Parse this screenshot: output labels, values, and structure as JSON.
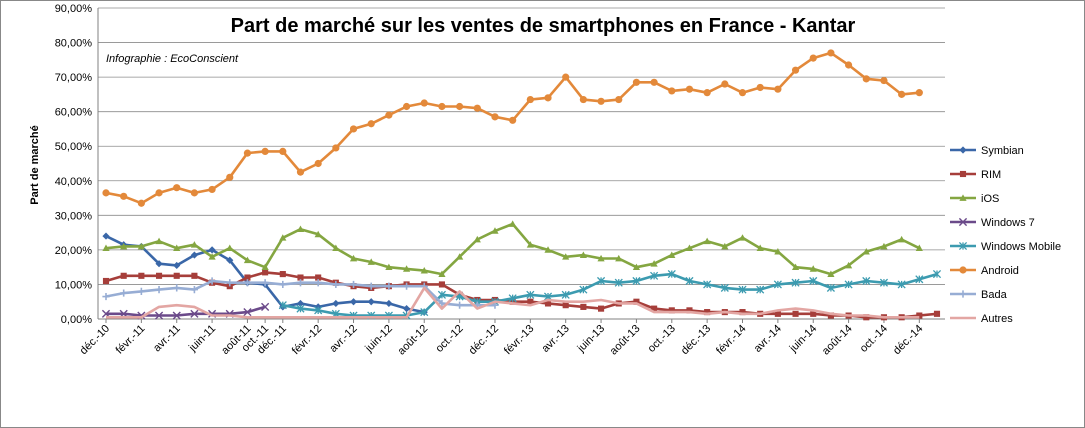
{
  "chart_data": {
    "type": "line",
    "title": "Part de marché sur les ventes de smartphones en France - Kantar",
    "subtitle": "Infographie : EcoConscient",
    "ylabel": "Part de marché",
    "xlabel": "",
    "ylim": [
      0,
      90
    ],
    "ytick_labels": [
      "0,00%",
      "10,00%",
      "20,00%",
      "30,00%",
      "40,00%",
      "50,00%",
      "60,00%",
      "70,00%",
      "80,00%",
      "90,00%"
    ],
    "grid": "horizontal",
    "legend_position": "right",
    "x": [
      "déc.-10",
      "janv.-11",
      "févr.-11",
      "mars-11",
      "avr.-11",
      "mai-11",
      "juin-11",
      "juil.-11",
      "août-11",
      "oct.-11",
      "déc.-11",
      "janv.-12",
      "févr.-12",
      "mars-12",
      "avr.-12",
      "mai-12",
      "juin-12",
      "juil.-12",
      "août-12",
      "sept.-12",
      "oct.-12",
      "nov.-12",
      "déc.-12",
      "janv.-13",
      "févr.-13",
      "mars-13",
      "avr.-13",
      "mai-13",
      "juin-13",
      "juil.-13",
      "août-13",
      "sept.-13",
      "oct.-13",
      "nov.-13",
      "déc.-13",
      "janv.-14",
      "févr.-14",
      "mars-14",
      "avr.-14",
      "mai-14",
      "juin-14",
      "juil.-14",
      "août-14",
      "sept.-14",
      "oct.-14",
      "nov.-14",
      "déc.-14",
      "janv.-15"
    ],
    "x_tick_labels": [
      "déc.-10",
      "févr.-11",
      "avr.-11",
      "juin-11",
      "août-11",
      "oct.-11",
      "déc.-11",
      "févr.-12",
      "avr.-12",
      "juin-12",
      "août-12",
      "oct.-12",
      "déc.-12",
      "févr.-13",
      "avr.-13",
      "juin-13",
      "août-13",
      "oct.-13",
      "déc.-13",
      "févr.-14",
      "avr.-14",
      "juin-14",
      "août-14",
      "oct.-14",
      "déc.-14"
    ],
    "series": [
      {
        "name": "Symbian",
        "color": "#3A67A8",
        "marker": "diamond",
        "values": [
          24,
          21.5,
          21,
          16,
          15.5,
          18.5,
          20,
          17,
          10.5,
          10,
          3.5,
          4.5,
          3.5,
          4.5,
          5,
          5,
          4.5,
          3,
          2,
          null,
          null,
          null,
          null,
          null,
          null,
          null,
          null,
          null,
          null,
          null,
          null,
          null,
          null,
          null,
          null,
          null,
          null,
          null,
          null,
          null,
          null,
          null,
          null,
          null,
          null,
          null,
          null,
          null
        ]
      },
      {
        "name": "RIM",
        "color": "#A63E3A",
        "marker": "square",
        "values": [
          11,
          12.5,
          12.5,
          12.5,
          12.5,
          12.5,
          10.5,
          9.5,
          12,
          13.5,
          13,
          12,
          12,
          10.5,
          9.5,
          9,
          9.5,
          10,
          10,
          10,
          7,
          5.5,
          5.5,
          5,
          5,
          4.5,
          4,
          3.5,
          3,
          4.5,
          5,
          3,
          2.5,
          2.5,
          2,
          2,
          2,
          1.5,
          1.5,
          1.5,
          1.5,
          1,
          1,
          0.5,
          0.5,
          0.5,
          1,
          1.5
        ]
      },
      {
        "name": "iOS",
        "color": "#84A641",
        "marker": "triangle",
        "values": [
          20.5,
          21,
          21,
          22.5,
          20.5,
          21.5,
          18,
          20.5,
          17,
          15,
          23.5,
          26,
          24.5,
          20.5,
          17.5,
          16.5,
          15,
          14.5,
          14,
          13,
          18,
          23,
          25.5,
          27.5,
          21.5,
          20,
          18,
          18.5,
          17.5,
          17.5,
          15,
          16,
          18.5,
          20.5,
          22.5,
          21,
          23.5,
          20.5,
          19.5,
          15,
          14.5,
          13,
          15.5,
          19.5,
          21,
          23,
          20.5,
          null
        ]
      },
      {
        "name": "Windows 7",
        "color": "#6B4A8A",
        "marker": "x",
        "values": [
          1.5,
          1.5,
          1,
          1,
          1,
          1.5,
          1.5,
          1.5,
          2,
          3.5,
          null,
          null,
          null,
          null,
          null,
          null,
          null,
          null,
          null,
          null,
          null,
          null,
          null,
          null,
          null,
          null,
          null,
          null,
          null,
          null,
          null,
          null,
          null,
          null,
          null,
          null,
          null,
          null,
          null,
          null,
          null,
          null,
          null,
          null,
          null,
          null,
          null,
          null
        ]
      },
      {
        "name": "Windows Mobile",
        "color": "#3C9BB0",
        "marker": "asterisk",
        "values": [
          null,
          null,
          null,
          null,
          null,
          null,
          null,
          null,
          null,
          null,
          4,
          3,
          2.5,
          1.5,
          1,
          1,
          1,
          1,
          2,
          7,
          6.5,
          5,
          5,
          6,
          7,
          6.5,
          7,
          8.5,
          11,
          10.5,
          11,
          12.5,
          13,
          11,
          10,
          9,
          8.5,
          8.5,
          10,
          10.5,
          11,
          9,
          10,
          11,
          10.5,
          10,
          11.5,
          13
        ]
      },
      {
        "name": "Android",
        "color": "#E3893A",
        "marker": "circle",
        "values": [
          36.5,
          35.5,
          33.5,
          36.5,
          38,
          36.5,
          37.5,
          41,
          48,
          48.5,
          48.5,
          42.5,
          45,
          49.5,
          55,
          56.5,
          59,
          61.5,
          62.5,
          61.5,
          61.5,
          61,
          58.5,
          57.5,
          63.5,
          64,
          70,
          63.5,
          63,
          63.5,
          68.5,
          68.5,
          66,
          66.5,
          65.5,
          68,
          65.5,
          67,
          66.5,
          72,
          75.5,
          77,
          73.5,
          69.5,
          69,
          65,
          65.5,
          null
        ]
      },
      {
        "name": "Bada",
        "color": "#97ADD4",
        "marker": "plus",
        "values": [
          6.5,
          7.5,
          8,
          8.5,
          9,
          8.5,
          11,
          10.5,
          10.5,
          10.5,
          10,
          10.5,
          10.5,
          10,
          10,
          9.5,
          9.5,
          9.5,
          9.5,
          4.5,
          4,
          4,
          4,
          null,
          null,
          null,
          null,
          null,
          null,
          null,
          null,
          null,
          null,
          null,
          null,
          null,
          null,
          null,
          null,
          null,
          null,
          null,
          null,
          null,
          null,
          null,
          null,
          null
        ]
      },
      {
        "name": "Autres",
        "color": "#E3A6A3",
        "marker": "none",
        "values": [
          0.5,
          0.5,
          0.5,
          3.5,
          4,
          3.5,
          1,
          1,
          0.5,
          0.5,
          0.5,
          0.5,
          0.5,
          0.5,
          0.5,
          0.5,
          0.5,
          0.5,
          9,
          3,
          8,
          3,
          5,
          4.5,
          4,
          5.5,
          5,
          5,
          5.5,
          4.5,
          4.5,
          2,
          2,
          2,
          1.5,
          2,
          1.5,
          1.5,
          2.5,
          3,
          2.5,
          1.5,
          1,
          1,
          0.5,
          0.5,
          0.5,
          null
        ]
      }
    ]
  }
}
